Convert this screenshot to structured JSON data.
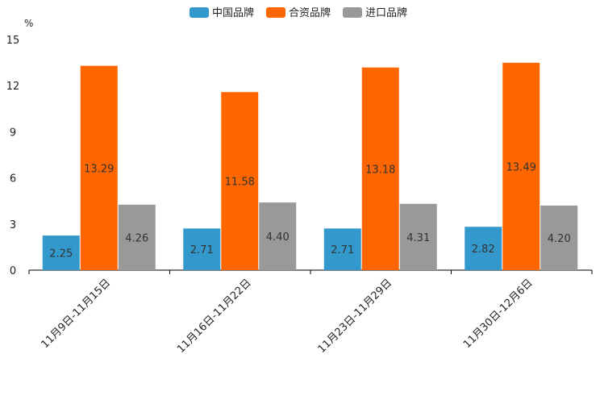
{
  "chart_data": {
    "type": "bar",
    "title": "",
    "xlabel": "",
    "ylabel": "%",
    "ylim": [
      0,
      15
    ],
    "yticks": [
      0,
      3,
      6,
      9,
      12,
      15
    ],
    "legend_position": "top-center",
    "grid": false,
    "categories": [
      "11月9日-11月15日",
      "11月16日-11月22日",
      "11月23日-11月29日",
      "11月30日-12月6日"
    ],
    "series": [
      {
        "name": "中国品牌",
        "color": "#3399cc",
        "values": [
          2.25,
          2.71,
          2.71,
          2.82
        ],
        "labels": [
          "2.25",
          "2.71",
          "2.71",
          "2.82"
        ]
      },
      {
        "name": "合资品牌",
        "color": "#ff6600",
        "values": [
          13.29,
          11.58,
          13.18,
          13.49
        ],
        "labels": [
          "13.29",
          "11.58",
          "13.18",
          "13.49"
        ]
      },
      {
        "name": "进口品牌",
        "color": "#999999",
        "values": [
          4.26,
          4.4,
          4.31,
          4.2
        ],
        "labels": [
          "4.26",
          "4.40",
          "4.31",
          "4.20"
        ]
      }
    ]
  }
}
